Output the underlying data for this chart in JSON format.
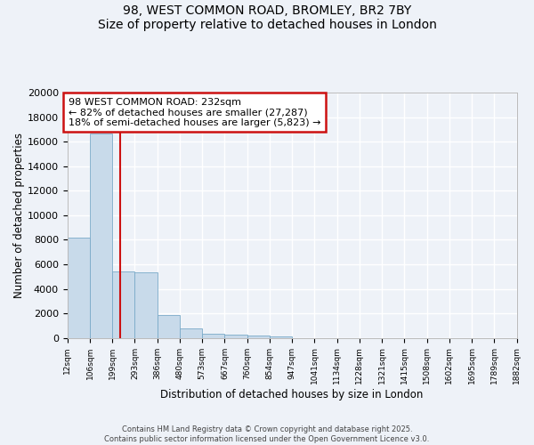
{
  "title_line1": "98, WEST COMMON ROAD, BROMLEY, BR2 7BY",
  "title_line2": "Size of property relative to detached houses in London",
  "xlabel": "Distribution of detached houses by size in London",
  "ylabel": "Number of detached properties",
  "annotation_title": "98 WEST COMMON ROAD: 232sqm",
  "annotation_line2": "← 82% of detached houses are smaller (27,287)",
  "annotation_line3": "18% of semi-detached houses are larger (5,823) →",
  "bar_edges": [
    12,
    106,
    199,
    293,
    386,
    480,
    573,
    667,
    760,
    854,
    947,
    1041,
    1134,
    1228,
    1321,
    1415,
    1508,
    1602,
    1695,
    1789,
    1882
  ],
  "bar_heights": [
    8200,
    16700,
    5400,
    5350,
    1850,
    800,
    350,
    270,
    200,
    130,
    0,
    0,
    0,
    0,
    0,
    0,
    0,
    0,
    0,
    0
  ],
  "bar_color": "#c8daea",
  "bar_edge_color": "#7aaac8",
  "vline_x": 232,
  "vline_color": "#cc1111",
  "annotation_box_color": "#cc1111",
  "ylim": [
    0,
    20000
  ],
  "yticks": [
    0,
    2000,
    4000,
    6000,
    8000,
    10000,
    12000,
    14000,
    16000,
    18000,
    20000
  ],
  "tick_labels": [
    "12sqm",
    "106sqm",
    "199sqm",
    "293sqm",
    "386sqm",
    "480sqm",
    "573sqm",
    "667sqm",
    "760sqm",
    "854sqm",
    "947sqm",
    "1041sqm",
    "1134sqm",
    "1228sqm",
    "1321sqm",
    "1415sqm",
    "1508sqm",
    "1602sqm",
    "1695sqm",
    "1789sqm",
    "1882sqm"
  ],
  "background_color": "#eef2f8",
  "grid_color": "#ffffff",
  "footer_line1": "Contains HM Land Registry data © Crown copyright and database right 2025.",
  "footer_line2": "Contains public sector information licensed under the Open Government Licence v3.0."
}
